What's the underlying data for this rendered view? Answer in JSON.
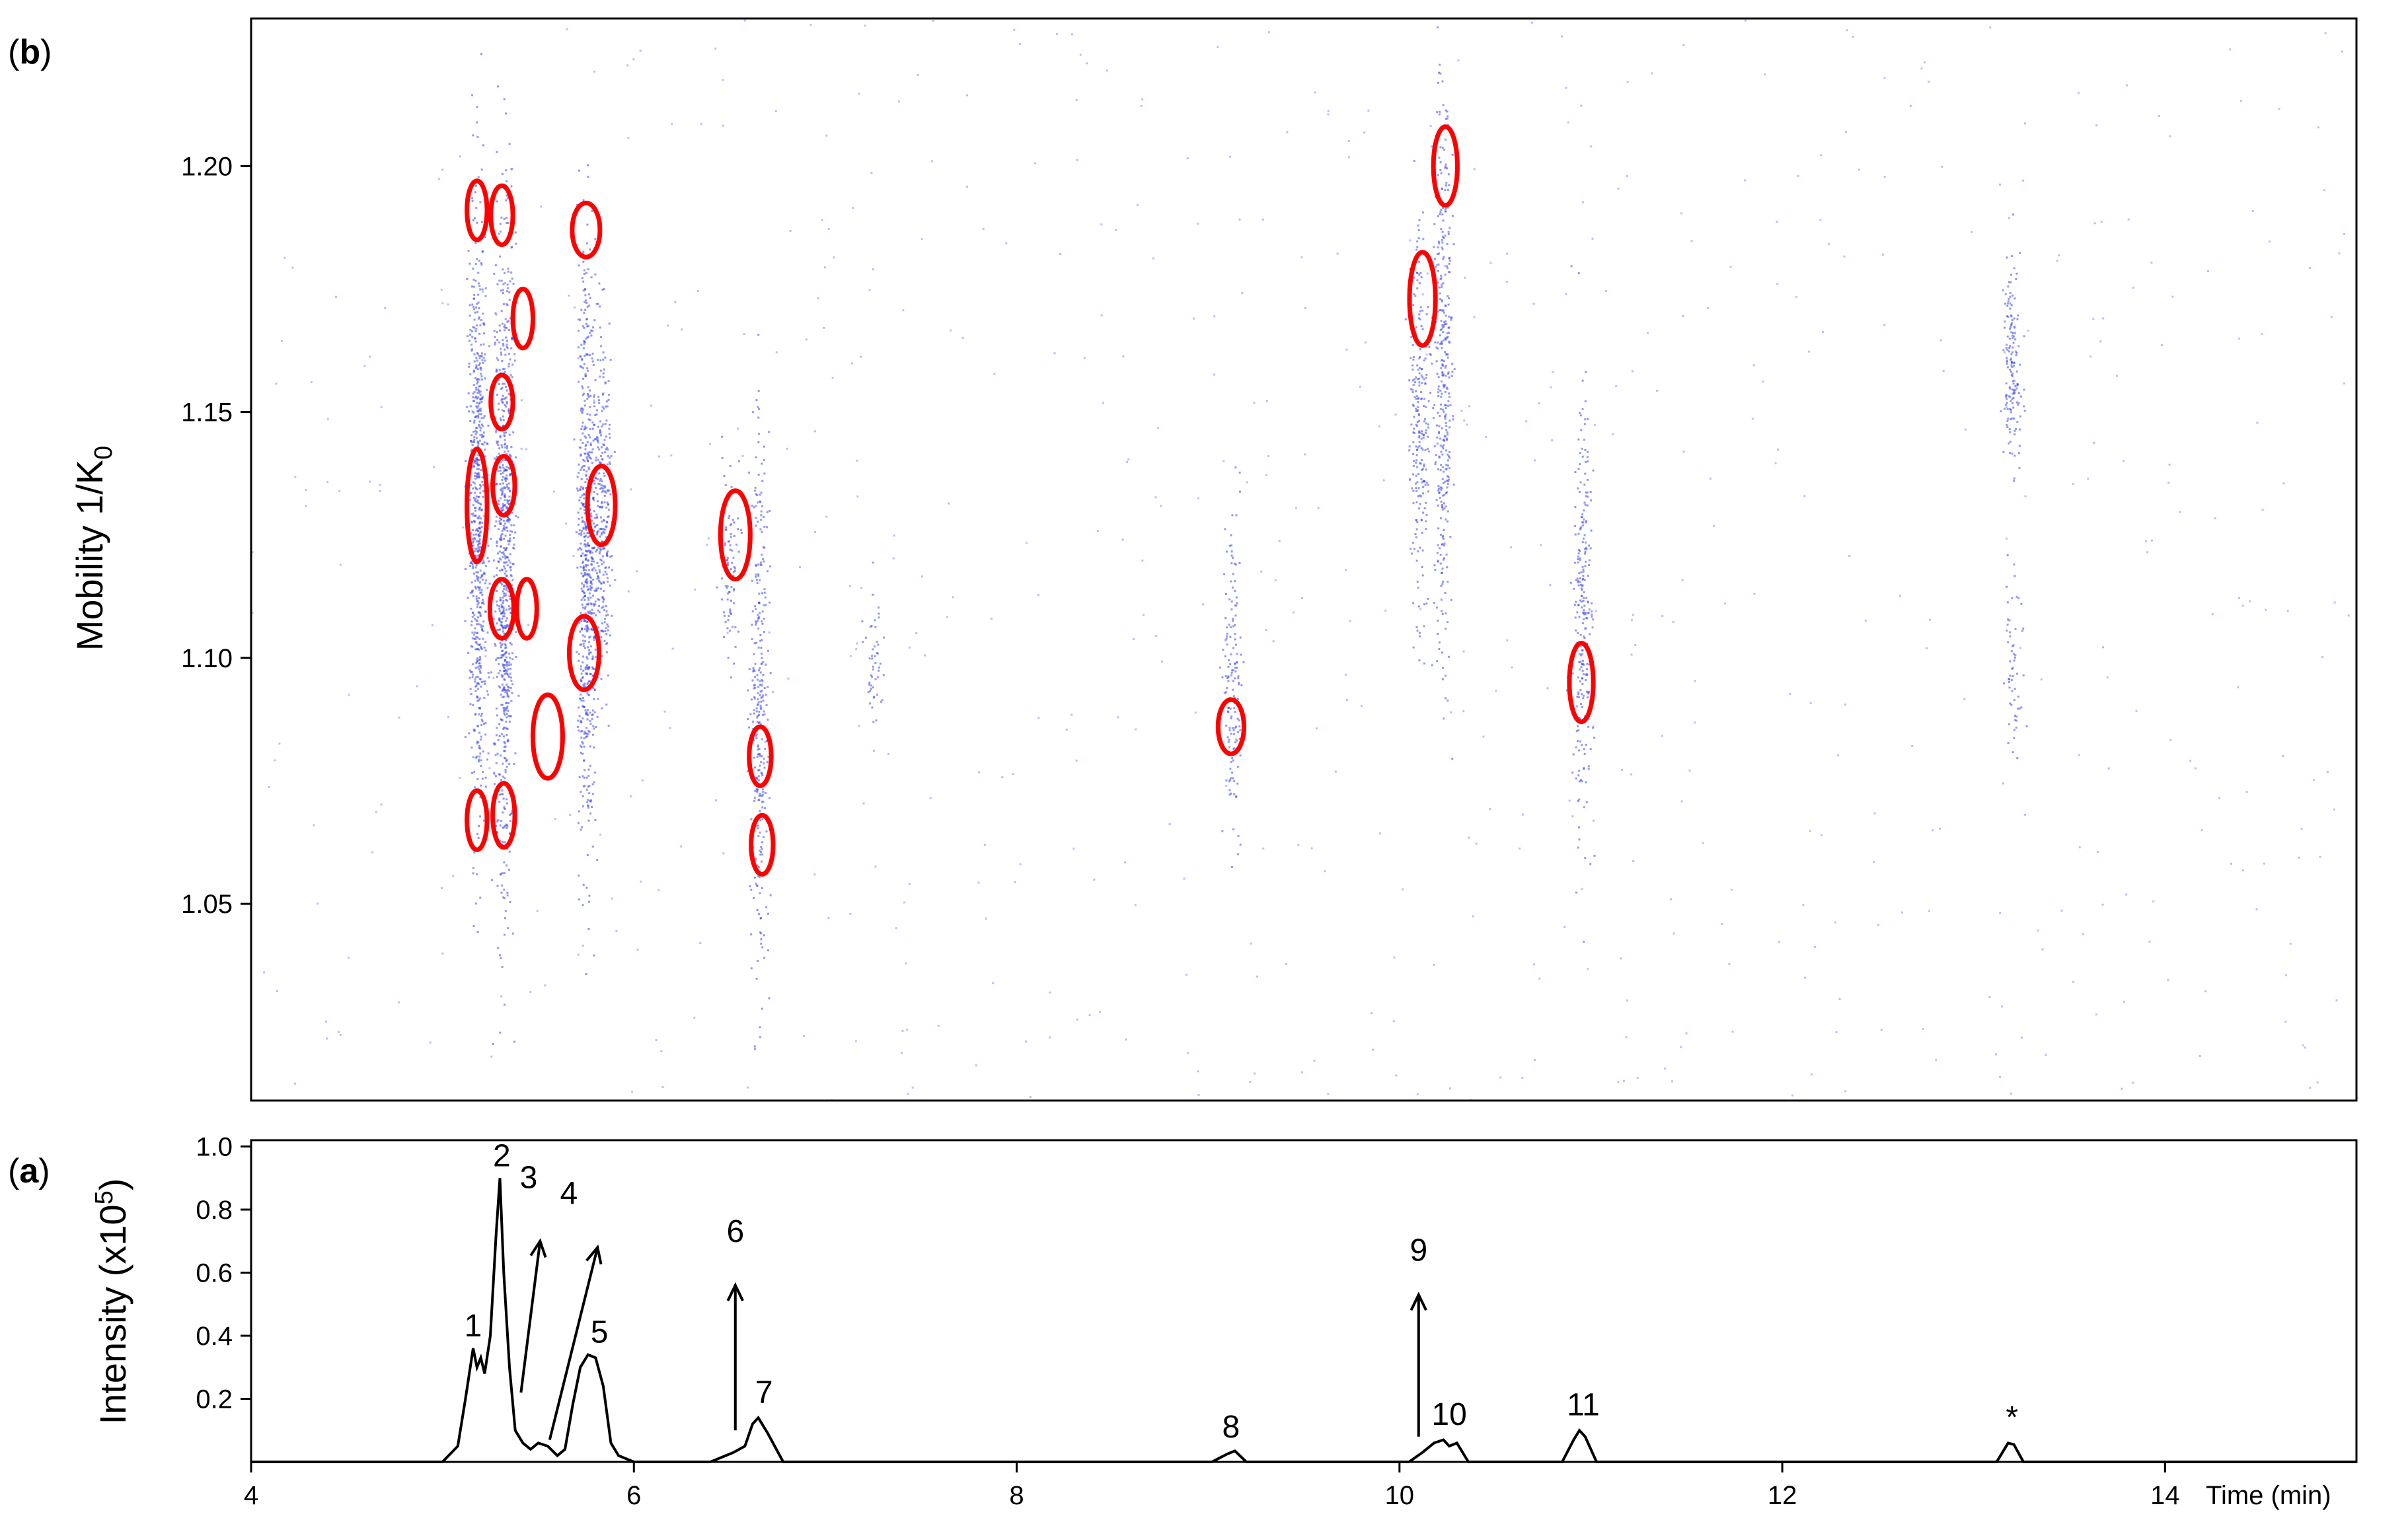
{
  "chart_data": [
    {
      "panel": "(b)",
      "panel_label": {
        "open": "(",
        "letter": "b",
        "close": ")"
      },
      "type": "scatter",
      "xlabel": "",
      "ylabel_main": "Mobility 1/K",
      "ylabel_sub": "0",
      "xlim": [
        4,
        15
      ],
      "ylim": [
        1.01,
        1.23
      ],
      "yticks": [
        1.05,
        1.1,
        1.15,
        1.2
      ],
      "ytick_labels": [
        "1.05",
        "1.10",
        "1.15",
        "1.20"
      ],
      "point_color": "#3b44e6",
      "marker_color": "#ff0000",
      "clusters": [
        {
          "x": 5.18,
          "y_center": 1.13,
          "y_spread": 0.09,
          "count": 700
        },
        {
          "x": 5.32,
          "y_center": 1.12,
          "y_spread": 0.1,
          "count": 800
        },
        {
          "x": 5.75,
          "y_center": 1.12,
          "y_spread": 0.09,
          "count": 650
        },
        {
          "x": 5.83,
          "y_center": 1.13,
          "y_spread": 0.05,
          "count": 300
        },
        {
          "x": 6.5,
          "y_center": 1.12,
          "y_spread": 0.03,
          "count": 90
        },
        {
          "x": 6.65,
          "y_center": 1.09,
          "y_spread": 0.08,
          "count": 320
        },
        {
          "x": 7.25,
          "y_center": 1.1,
          "y_spread": 0.02,
          "count": 50
        },
        {
          "x": 9.12,
          "y_center": 1.1,
          "y_spread": 0.05,
          "count": 160
        },
        {
          "x": 10.1,
          "y_center": 1.15,
          "y_spread": 0.06,
          "count": 240
        },
        {
          "x": 10.22,
          "y_center": 1.16,
          "y_spread": 0.09,
          "count": 380
        },
        {
          "x": 10.95,
          "y_center": 1.11,
          "y_spread": 0.07,
          "count": 260
        },
        {
          "x": 13.2,
          "y_center": 1.16,
          "y_spread": 0.03,
          "count": 160
        },
        {
          "x": 13.2,
          "y_center": 1.1,
          "y_spread": 0.03,
          "count": 60
        }
      ],
      "marked_features": [
        {
          "x": 5.18,
          "y": 1.191,
          "rx_min": 0.05,
          "ry": 0.006
        },
        {
          "x": 5.31,
          "y": 1.19,
          "rx_min": 0.06,
          "ry": 0.006
        },
        {
          "x": 5.75,
          "y": 1.187,
          "rx_min": 0.09,
          "ry": 0.0055
        },
        {
          "x": 5.42,
          "y": 1.169,
          "rx_min": 0.05,
          "ry": 0.006
        },
        {
          "x": 5.31,
          "y": 1.152,
          "rx_min": 0.06,
          "ry": 0.0055
        },
        {
          "x": 5.18,
          "y": 1.131,
          "rx_min": 0.05,
          "ry": 0.0115
        },
        {
          "x": 5.32,
          "y": 1.135,
          "rx_min": 0.06,
          "ry": 0.006
        },
        {
          "x": 5.83,
          "y": 1.131,
          "rx_min": 0.09,
          "ry": 0.008
        },
        {
          "x": 6.53,
          "y": 1.125,
          "rx_min": 0.1,
          "ry": 0.009
        },
        {
          "x": 5.31,
          "y": 1.11,
          "rx_min": 0.07,
          "ry": 0.006
        },
        {
          "x": 5.44,
          "y": 1.11,
          "rx_min": 0.05,
          "ry": 0.006
        },
        {
          "x": 5.74,
          "y": 1.101,
          "rx_min": 0.1,
          "ry": 0.0075
        },
        {
          "x": 5.55,
          "y": 1.084,
          "rx_min": 0.1,
          "ry": 0.0085
        },
        {
          "x": 6.66,
          "y": 1.08,
          "rx_min": 0.06,
          "ry": 0.006
        },
        {
          "x": 6.67,
          "y": 1.062,
          "rx_min": 0.06,
          "ry": 0.006
        },
        {
          "x": 5.18,
          "y": 1.067,
          "rx_min": 0.05,
          "ry": 0.006
        },
        {
          "x": 5.32,
          "y": 1.068,
          "rx_min": 0.06,
          "ry": 0.0065
        },
        {
          "x": 9.12,
          "y": 1.086,
          "rx_min": 0.08,
          "ry": 0.0055
        },
        {
          "x": 10.12,
          "y": 1.173,
          "rx_min": 0.08,
          "ry": 0.0095
        },
        {
          "x": 10.24,
          "y": 1.2,
          "rx_min": 0.07,
          "ry": 0.008
        },
        {
          "x": 10.95,
          "y": 1.095,
          "rx_min": 0.07,
          "ry": 0.008
        }
      ]
    },
    {
      "panel": "(a)",
      "panel_label": {
        "open": "(",
        "letter": "a",
        "close": ")"
      },
      "type": "line",
      "xlabel": "Time (min)",
      "ylabel_main": "Intensity (x10",
      "ylabel_sup": "5",
      "ylabel_close": ")",
      "xlim": [
        4,
        15
      ],
      "ylim": [
        0,
        1.02
      ],
      "xticks": [
        4,
        6,
        8,
        10,
        12,
        14
      ],
      "xtick_labels": [
        "4",
        "6",
        "8",
        "10",
        "12",
        "14"
      ],
      "yticks": [
        0.2,
        0.4,
        0.6,
        0.8,
        1.0
      ],
      "ytick_labels": [
        "0.2",
        "0.4",
        "0.6",
        "0.8",
        "1.0"
      ],
      "series": [
        {
          "line_color": "#000000",
          "x": [
            4.0,
            5.0,
            5.08,
            5.12,
            5.16,
            5.18,
            5.2,
            5.22,
            5.25,
            5.28,
            5.3,
            5.32,
            5.35,
            5.38,
            5.42,
            5.46,
            5.5,
            5.55,
            5.6,
            5.64,
            5.68,
            5.72,
            5.76,
            5.8,
            5.84,
            5.88,
            5.92,
            6.0,
            6.4,
            6.52,
            6.58,
            6.62,
            6.65,
            6.7,
            6.78,
            9.02,
            9.1,
            9.14,
            9.2,
            10.05,
            10.12,
            10.18,
            10.23,
            10.26,
            10.3,
            10.36,
            10.85,
            10.91,
            10.94,
            10.97,
            11.03,
            13.12,
            13.18,
            13.21,
            13.26,
            15.0
          ],
          "y": [
            0.0,
            0.0,
            0.05,
            0.2,
            0.36,
            0.3,
            0.33,
            0.28,
            0.4,
            0.72,
            0.9,
            0.6,
            0.3,
            0.1,
            0.06,
            0.04,
            0.06,
            0.05,
            0.02,
            0.04,
            0.18,
            0.3,
            0.34,
            0.33,
            0.24,
            0.06,
            0.02,
            0.0,
            0.0,
            0.03,
            0.05,
            0.12,
            0.14,
            0.09,
            0.0,
            0.0,
            0.025,
            0.035,
            0.0,
            0.0,
            0.03,
            0.06,
            0.07,
            0.05,
            0.06,
            0.0,
            0.0,
            0.07,
            0.1,
            0.08,
            0.0,
            0.0,
            0.06,
            0.055,
            0.0,
            0.0
          ]
        }
      ],
      "peak_labels": [
        {
          "text": "1",
          "x": 5.16,
          "y": 0.36
        },
        {
          "text": "2",
          "x": 5.31,
          "y": 0.9
        },
        {
          "text": "3",
          "x": 5.45,
          "y": 0.83
        },
        {
          "text": "4",
          "x": 5.66,
          "y": 0.78
        },
        {
          "text": "5",
          "x": 5.82,
          "y": 0.34
        },
        {
          "text": "6",
          "x": 6.53,
          "y": 0.66
        },
        {
          "text": "7",
          "x": 6.68,
          "y": 0.15
        },
        {
          "text": "8",
          "x": 9.12,
          "y": 0.04
        },
        {
          "text": "9",
          "x": 10.1,
          "y": 0.6
        },
        {
          "text": "10",
          "x": 10.26,
          "y": 0.08
        },
        {
          "text": "11",
          "x": 10.96,
          "y": 0.11
        },
        {
          "text": "*",
          "x": 13.2,
          "y": 0.07
        }
      ],
      "arrows": [
        {
          "x1": 5.41,
          "y1": 0.22,
          "x2": 5.51,
          "y2": 0.7
        },
        {
          "x1": 5.56,
          "y1": 0.07,
          "x2": 5.81,
          "y2": 0.68
        },
        {
          "x1": 6.53,
          "y1": 0.1,
          "x2": 6.53,
          "y2": 0.56
        },
        {
          "x1": 10.1,
          "y1": 0.08,
          "x2": 10.1,
          "y2": 0.53
        }
      ]
    }
  ]
}
